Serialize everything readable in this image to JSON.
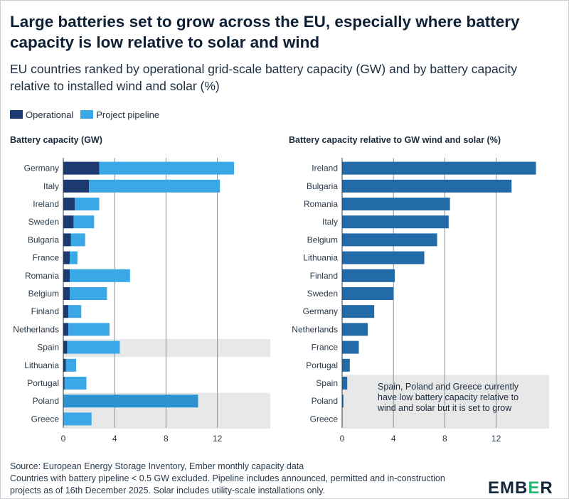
{
  "title": "Large batteries set to grow across the EU, especially where battery capacity is low relative to solar and wind",
  "subtitle": "EU countries ranked by operational grid-scale battery capacity (GW) and by battery capacity relative to installed wind and solar (%)",
  "legend": {
    "operational": "Operational",
    "pipeline": "Project pipeline"
  },
  "colors": {
    "operational": "#1c3a70",
    "pipeline": "#3aa8e6",
    "poland_pipeline": "#2e92d0",
    "ratio": "#226aa8",
    "highlight": "#e8e8e8",
    "grid": "#8a8f96"
  },
  "annotation": "Spain, Poland and Greece currently have low battery capacity relative to wind and solar but it is set to grow",
  "source": "Source: European Energy Storage Inventory, Ember monthly capacity data",
  "footnote": "Countries with battery pipeline < 0.5 GW excluded. Pipeline includes announced, permitted and in-construction projects as of 16th December 2025. Solar includes utility-scale installations only.",
  "logo": {
    "text_a": "EMB",
    "text_b": "E",
    "text_c": "R"
  },
  "chart_data": [
    {
      "type": "bar",
      "title": "Battery capacity (GW)",
      "orientation": "horizontal",
      "stacked": true,
      "categories": [
        "Germany",
        "Italy",
        "Ireland",
        "Sweden",
        "Bulgaria",
        "France",
        "Romania",
        "Belgium",
        "Finland",
        "Netherlands",
        "Spain",
        "Lithuania",
        "Portugal",
        "Poland",
        "Greece"
      ],
      "series": [
        {
          "name": "Operational",
          "values": [
            2.8,
            2.0,
            0.9,
            0.8,
            0.6,
            0.5,
            0.5,
            0.5,
            0.4,
            0.4,
            0.3,
            0.2,
            0.1,
            0.0,
            0.0
          ]
        },
        {
          "name": "Project pipeline",
          "values": [
            10.5,
            10.2,
            1.9,
            1.6,
            1.1,
            0.6,
            4.7,
            2.9,
            1.0,
            3.2,
            4.1,
            0.8,
            1.7,
            10.5,
            2.2
          ]
        }
      ],
      "highlight": [
        "Spain",
        "Poland",
        "Greece"
      ],
      "xlim": [
        0,
        16
      ],
      "xticks": [
        0,
        4,
        8,
        12
      ],
      "grid": true
    },
    {
      "type": "bar",
      "title": "Battery capacity relative to GW wind and solar (%)",
      "orientation": "horizontal",
      "categories": [
        "Ireland",
        "Bulgaria",
        "Romania",
        "Italy",
        "Belgium",
        "Lithuania",
        "Finland",
        "Sweden",
        "Germany",
        "Netherlands",
        "France",
        "Portugal",
        "Spain",
        "Poland",
        "Greece"
      ],
      "values": [
        15.1,
        13.2,
        8.4,
        8.3,
        7.4,
        6.4,
        4.1,
        4.0,
        2.5,
        2.0,
        1.3,
        0.6,
        0.4,
        0.1,
        0.0
      ],
      "highlight": [
        "Spain",
        "Poland",
        "Greece"
      ],
      "xlim": [
        0,
        16
      ],
      "xticks": [
        0,
        4,
        8,
        12
      ],
      "grid": true
    }
  ]
}
